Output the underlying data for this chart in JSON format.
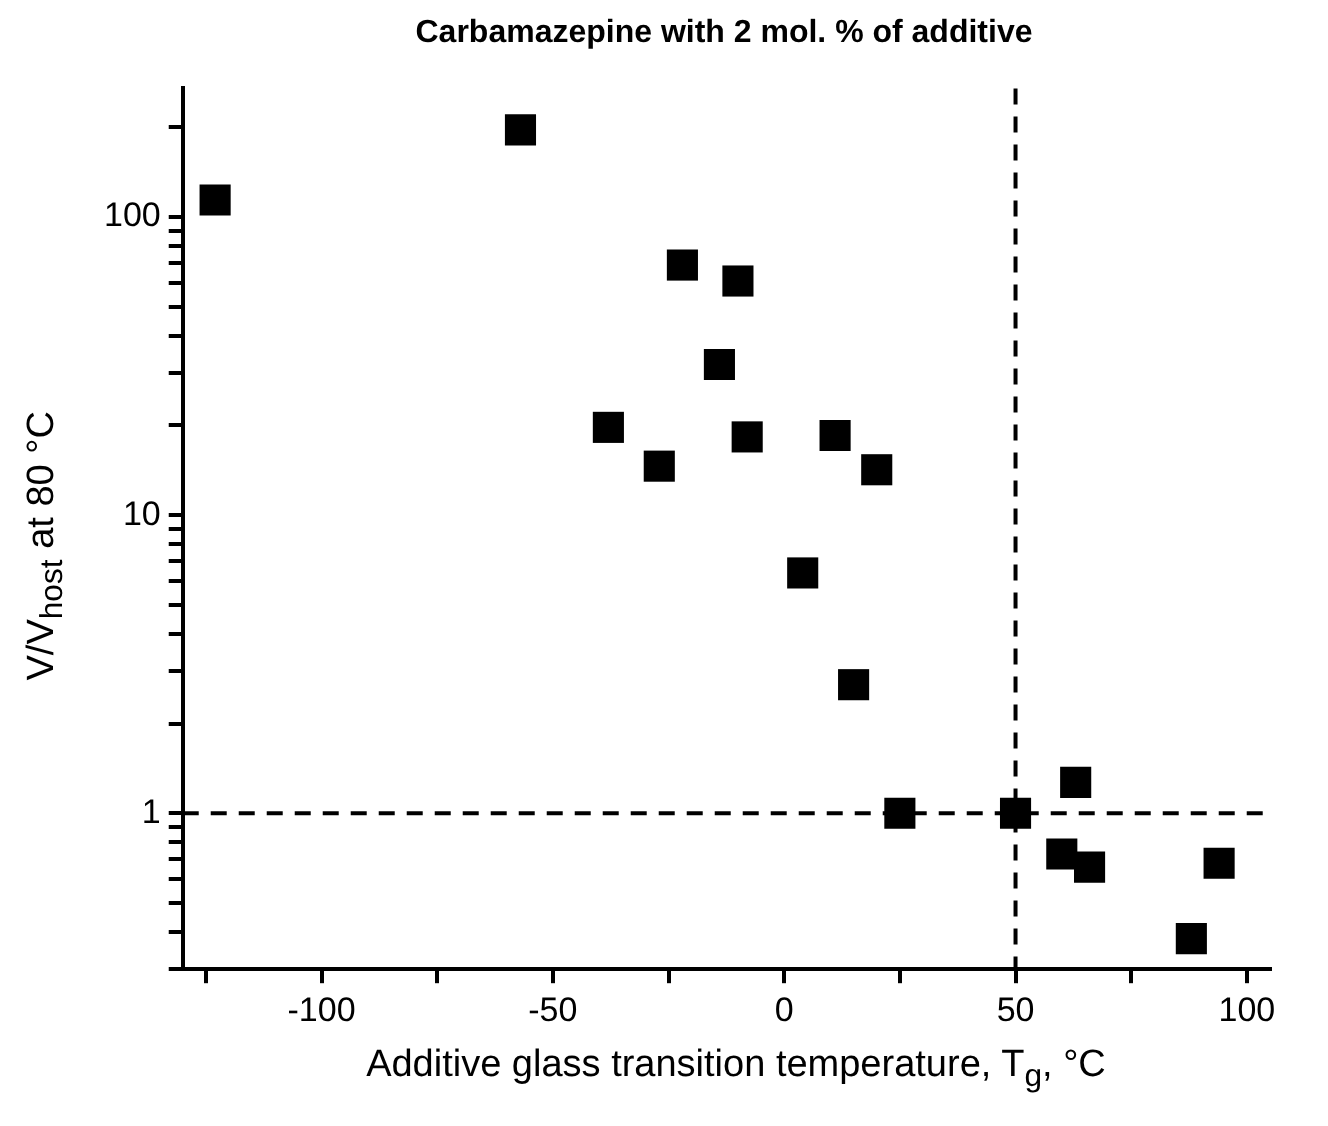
{
  "chart_data": {
    "type": "scatter",
    "title": "Carbamazepine with 2 mol. % of additive",
    "xlabel": "Additive glass transition temperature, T$_{g}$, °C",
    "ylabel": "V/V$_{host}$ at 80 °C",
    "x": [
      -123,
      -57,
      -22,
      -10,
      -14,
      -38,
      -27,
      -8,
      11,
      20,
      4,
      15,
      25,
      50,
      63,
      60,
      66,
      94,
      88
    ],
    "values": [
      114,
      196,
      69,
      61,
      32,
      19.7,
      14.6,
      18.3,
      18.5,
      14.2,
      6.4,
      2.7,
      1,
      1,
      1.27,
      0.73,
      0.66,
      0.68,
      0.38
    ],
    "color": "#000000",
    "marker": "square",
    "log": "y",
    "grid": false,
    "legend": false,
    "xlim": [
      -130,
      105
    ],
    "xticks": [
      {
        "value": -125,
        "label": null
      },
      -100,
      {
        "value": -75,
        "label": null
      },
      -50,
      {
        "value": -25,
        "label": null
      },
      0,
      {
        "value": 25,
        "label": null
      },
      50,
      {
        "value": 75,
        "label": null
      },
      100
    ],
    "ylim": [
      0.3,
      270
    ],
    "yticks": [
      {
        "value": 0.3,
        "label": null
      },
      {
        "value": 0.4,
        "label": null
      },
      {
        "value": 0.5,
        "label": null
      },
      {
        "value": 0.6,
        "label": null
      },
      {
        "value": 0.7,
        "label": null
      },
      {
        "value": 0.8,
        "label": null
      },
      {
        "value": 0.9,
        "label": null
      },
      1,
      {
        "value": 2,
        "label": null
      },
      {
        "value": 3,
        "label": null
      },
      {
        "value": 4,
        "label": null
      },
      {
        "value": 5,
        "label": null
      },
      {
        "value": 6,
        "label": null
      },
      {
        "value": 7,
        "label": null
      },
      {
        "value": 8,
        "label": null
      },
      {
        "value": 9,
        "label": null
      },
      10,
      {
        "value": 20,
        "label": null
      },
      {
        "value": 30,
        "label": null
      },
      {
        "value": 40,
        "label": null
      },
      {
        "value": 50,
        "label": null
      },
      {
        "value": 60,
        "label": null
      },
      {
        "value": 70,
        "label": null
      },
      {
        "value": 80,
        "label": null
      },
      {
        "value": 90,
        "label": null
      },
      100,
      {
        "value": 200,
        "label": null
      }
    ],
    "ref_lines": [
      {
        "axis": "x",
        "value": 50,
        "line_style": "dashed",
        "color": "#000000"
      },
      {
        "axis": "y",
        "value": 1,
        "line_style": "dashed",
        "color": "#000000"
      }
    ]
  }
}
